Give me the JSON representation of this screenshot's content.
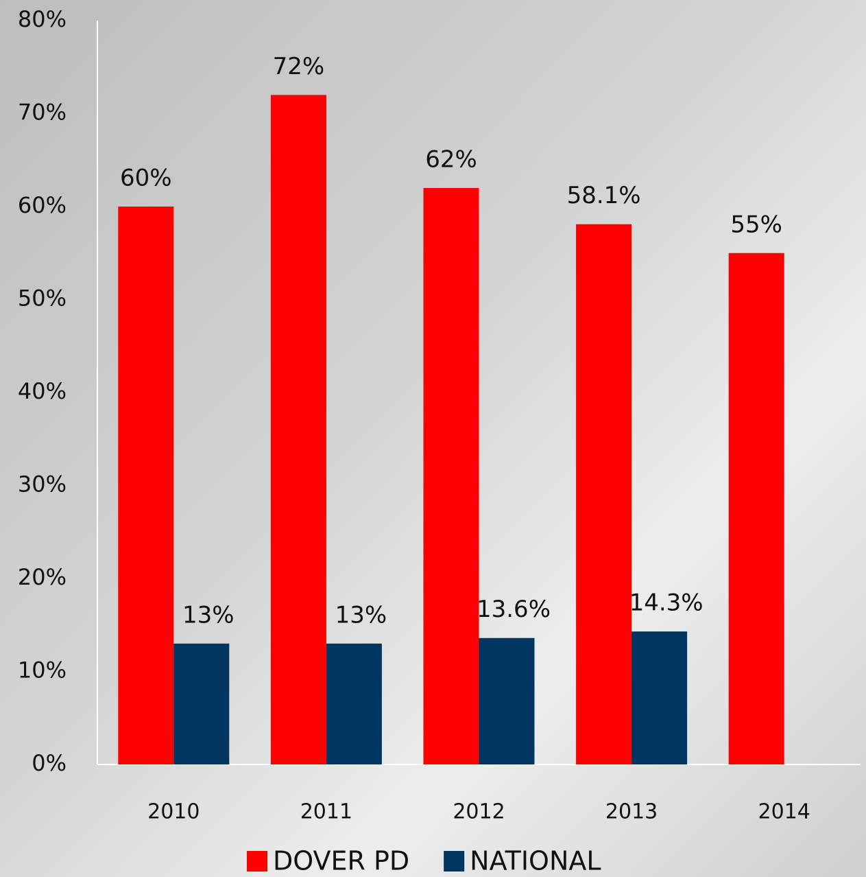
{
  "chart_data": {
    "type": "bar",
    "categories": [
      "2010",
      "2011",
      "2012",
      "2013",
      "2014"
    ],
    "series": [
      {
        "name": "DOVER PD",
        "color": "#ff0000",
        "values": [
          60,
          72,
          62,
          58.1,
          55
        ],
        "value_labels": [
          "60%",
          "72%",
          "62%",
          "58.1%",
          "55%"
        ]
      },
      {
        "name": "NATIONAL",
        "color": "#003660",
        "values": [
          13,
          13,
          13.6,
          14.3,
          null
        ],
        "value_labels": [
          "13%",
          "13%",
          "13.6%",
          "14.3%",
          null
        ]
      }
    ],
    "ylim": [
      0,
      80
    ],
    "yticks": [
      {
        "value": 0,
        "label": "0%"
      },
      {
        "value": 10,
        "label": "10%"
      },
      {
        "value": 20,
        "label": "20%"
      },
      {
        "value": 30,
        "label": "30%"
      },
      {
        "value": 40,
        "label": "40%"
      },
      {
        "value": 50,
        "label": "50%"
      },
      {
        "value": 60,
        "label": "60%"
      },
      {
        "value": 70,
        "label": "70%"
      },
      {
        "value": 80,
        "label": "80%"
      }
    ],
    "legend": "bottom"
  }
}
